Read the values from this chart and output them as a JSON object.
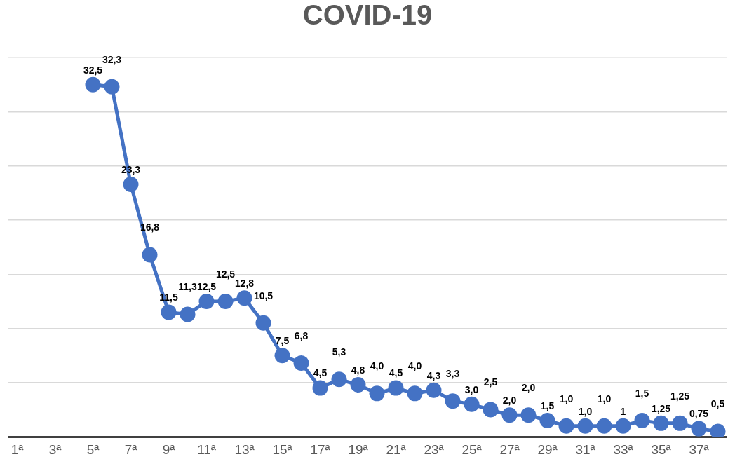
{
  "chart_data": {
    "type": "line",
    "title": "COVID-19",
    "categories": [
      "1ª",
      null,
      "3ª",
      null,
      "5ª",
      null,
      "7ª",
      null,
      "9ª",
      null,
      "11ª",
      null,
      "13ª",
      null,
      "15ª",
      null,
      "17ª",
      null,
      "19ª",
      null,
      "21ª",
      null,
      "23ª",
      null,
      "25ª",
      null,
      "27ª",
      null,
      "29ª",
      null,
      "31ª",
      null,
      "33ª",
      null,
      "35ª",
      null,
      "37ª",
      null
    ],
    "series": [
      {
        "color": "#4472c4",
        "values": [
          null,
          null,
          null,
          null,
          32.5,
          32.3,
          23.3,
          16.8,
          11.5,
          11.3,
          12.5,
          12.5,
          12.8,
          10.5,
          7.5,
          6.8,
          4.5,
          5.3,
          4.8,
          4.0,
          4.5,
          4.0,
          4.3,
          3.3,
          3.0,
          2.5,
          2.0,
          2.0,
          1.5,
          1.0,
          1.0,
          1.0,
          1,
          1.5,
          1.25,
          1.25,
          0.75,
          0.5
        ],
        "value_labels": [
          null,
          null,
          null,
          null,
          "32,5",
          "32,3",
          "23,3",
          "16,8",
          "11,5",
          "11,3",
          "12,5",
          "12,5",
          "12,8",
          "10,5",
          "7,5",
          "6,8",
          "4,5",
          "5,3",
          "4,8",
          "4,0",
          "4,5",
          "4,0",
          "4,3",
          "3,3",
          "3,0",
          "2,5",
          "2,0",
          "2,0",
          "1,5",
          "1,0",
          "1,0",
          "1,0",
          "1",
          "1,5",
          "1,25",
          "1,25",
          "0,75",
          "0,5"
        ]
      }
    ],
    "ylim": [
      0,
      35
    ],
    "yticks": [
      0,
      5,
      10,
      15,
      20,
      25,
      30,
      35
    ],
    "tick_labels": "x",
    "grid": "y",
    "legend": false,
    "marker": "circle",
    "line_style": "solid"
  }
}
